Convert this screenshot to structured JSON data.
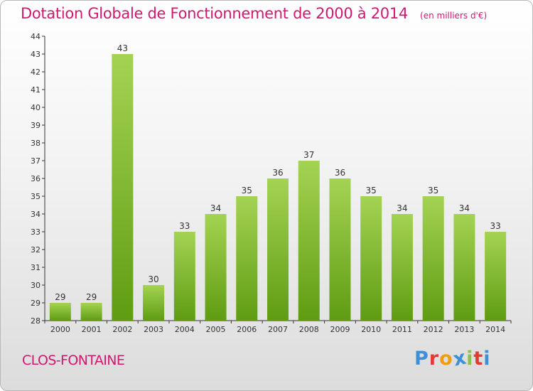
{
  "header": {
    "title": "Dotation Globale de Fonctionnement de 2000 à 2014",
    "subtitle": "(en milliers d'€)"
  },
  "footer": {
    "town": "CLOS-FONTAINE",
    "logo_text": "Proxiti",
    "logo_colors": [
      "#3d8fd6",
      "#e53935",
      "#f39c12",
      "#3d8fd6",
      "#8bc34a",
      "#e53935",
      "#3d8fd6"
    ]
  },
  "colors": {
    "bar_top": "#a4d353",
    "bar_bottom": "#5f9c12",
    "title": "#d0186f"
  },
  "chart_data": {
    "type": "bar",
    "title": "Dotation Globale de Fonctionnement de 2000 à 2014",
    "subtitle": "(en milliers d'€)",
    "categories": [
      "2000",
      "2001",
      "2002",
      "2003",
      "2004",
      "2005",
      "2006",
      "2007",
      "2008",
      "2009",
      "2010",
      "2011",
      "2012",
      "2013",
      "2014"
    ],
    "values": [
      29,
      29,
      43,
      30,
      33,
      34,
      35,
      36,
      37,
      36,
      35,
      34,
      35,
      34,
      33
    ],
    "xlabel": "",
    "ylabel": "",
    "ylim": [
      28,
      44
    ],
    "yticks": [
      28,
      29,
      30,
      31,
      32,
      33,
      34,
      35,
      36,
      37,
      38,
      39,
      40,
      41,
      42,
      43,
      44
    ],
    "grid": false,
    "legend": "none"
  }
}
